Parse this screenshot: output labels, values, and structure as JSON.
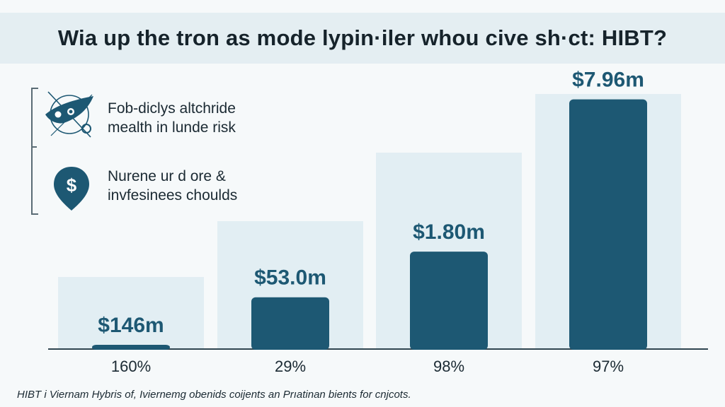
{
  "title": "Wia up the tron as mode lypin·iler whou cive sh·ct: HIBT?",
  "legend": {
    "items": [
      {
        "icon": "rocket-icon",
        "lines": [
          "Fob-diclys altchride",
          "mealth in lunde risk"
        ]
      },
      {
        "icon": "dollar-pin-icon",
        "lines": [
          "Nurene ur d ore &",
          "invfesinees choulds"
        ]
      }
    ]
  },
  "chart_data": {
    "type": "bar",
    "title": "Wia up the tron as mode lypin·iler whou cive sh·ct: HIBT?",
    "categories": [
      "160%",
      "29%",
      "98%",
      "97%"
    ],
    "series": [
      {
        "values": [
          0.3,
          8.5,
          16.0,
          41.0
        ]
      }
    ],
    "data_labels": [
      "$146m",
      "$53.0m",
      "$1.80m",
      "$7.96m"
    ],
    "ylim": [
      0,
      42
    ],
    "grid": false,
    "colors": {
      "bar": "#1d5873",
      "panel": "#e2eef3",
      "axis": "#2f4550"
    }
  },
  "caption": "HIBT i Viernam Hybris of, Iviernemg obenids coijents an Prıatinan bients for cnjcots."
}
